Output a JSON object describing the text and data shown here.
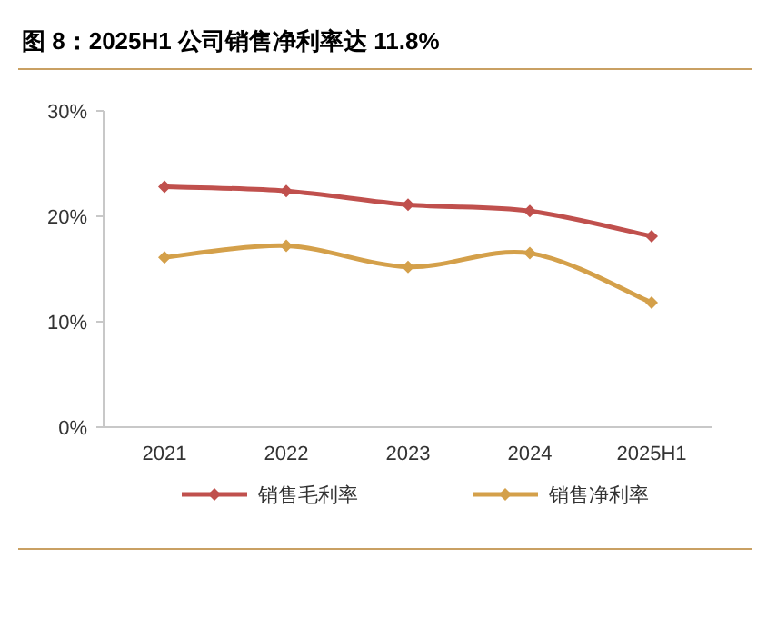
{
  "chart_data": {
    "type": "line",
    "title": "图 8：2025H1 公司销售净利率达 11.8%",
    "categories": [
      "2021",
      "2022",
      "2023",
      "2024",
      "2025H1"
    ],
    "series": [
      {
        "name": "销售毛利率",
        "color": "#c0504d",
        "values": [
          22.8,
          22.4,
          21.1,
          20.5,
          18.1
        ]
      },
      {
        "name": "销售净利率",
        "color": "#d4a04a",
        "values": [
          16.1,
          17.2,
          15.2,
          16.5,
          11.8
        ]
      }
    ],
    "ylim": [
      0,
      30
    ],
    "yticks": [
      {
        "value": 0,
        "label": "0%"
      },
      {
        "value": 10,
        "label": "10%"
      },
      {
        "value": 20,
        "label": "20%"
      },
      {
        "value": 30,
        "label": "30%"
      }
    ],
    "grid": false,
    "legend": "bottom",
    "marker": "diamond",
    "line_style": "solid"
  }
}
